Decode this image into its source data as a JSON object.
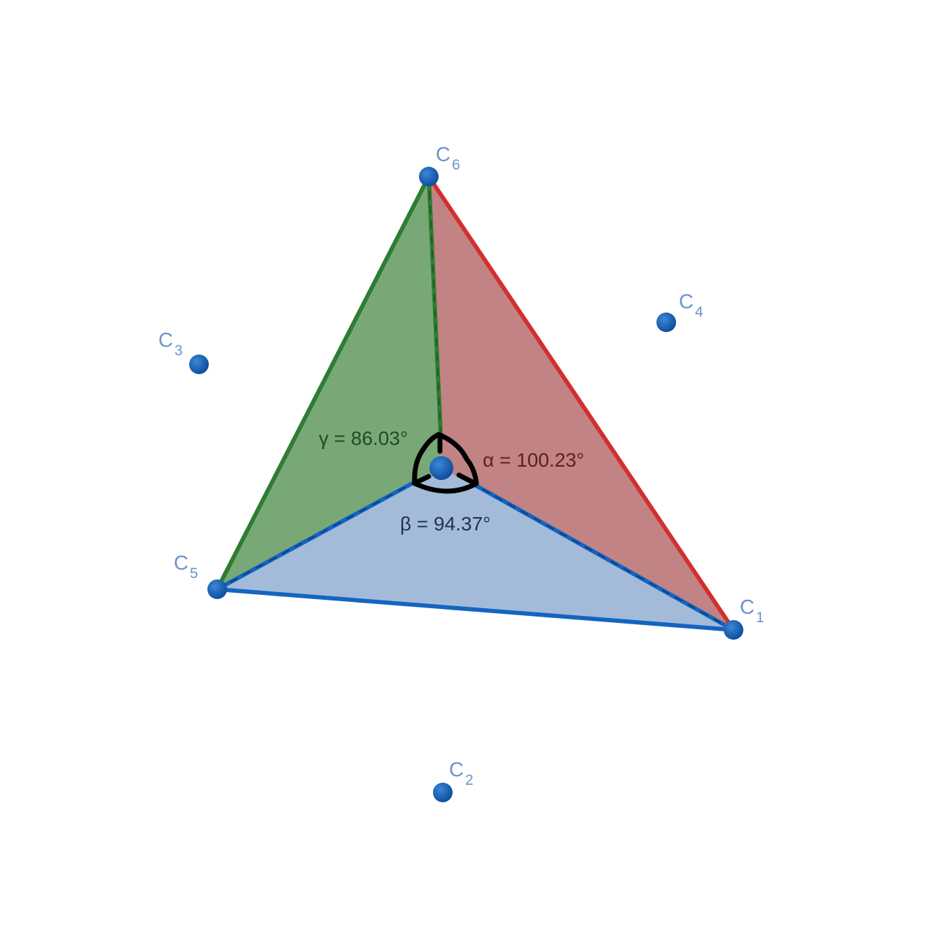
{
  "colors": {
    "background": "#ffffff",
    "point": "#1a5fb4",
    "point_label": "#6d93c9",
    "face_green": "#79a877",
    "edge_green": "#2e7d32",
    "face_red": "#c18383",
    "edge_red": "#d32f2f",
    "face_blue": "#a3bbd9",
    "edge_blue": "#1565c0",
    "angle_marker": "#000000",
    "label_gamma": "#254a25",
    "label_alpha": "#5c1f1f",
    "label_beta": "#1f3350"
  },
  "points": {
    "c1": {
      "letter": "C",
      "sub": "1"
    },
    "c2": {
      "letter": "C",
      "sub": "2"
    },
    "c3": {
      "letter": "C",
      "sub": "3"
    },
    "c4": {
      "letter": "C",
      "sub": "4"
    },
    "c5": {
      "letter": "C",
      "sub": "5"
    },
    "c6": {
      "letter": "C",
      "sub": "6"
    }
  },
  "angles": {
    "alpha": "α = 100.23°",
    "beta": "β = 94.37°",
    "gamma": "γ = 86.03°"
  }
}
